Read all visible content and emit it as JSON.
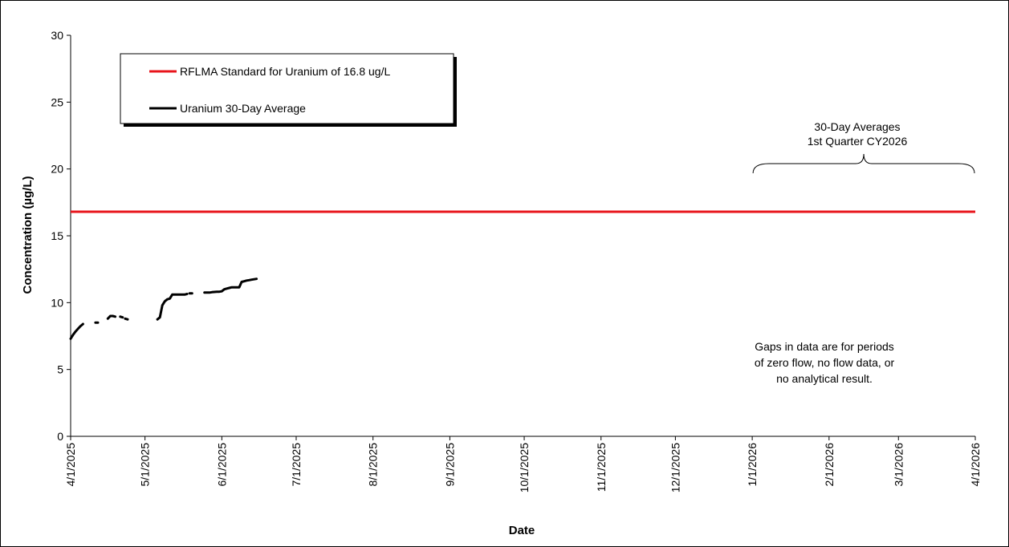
{
  "chart_data": {
    "type": "line",
    "xlabel": "Date",
    "ylabel": "Concentration (µg/L)",
    "ylim": [
      0,
      30
    ],
    "y_ticks": [
      "0",
      "5",
      "10",
      "15",
      "20",
      "25",
      "30"
    ],
    "x_ticks": [
      "4/1/2025",
      "5/1/2025",
      "6/1/2025",
      "7/1/2025",
      "8/1/2025",
      "9/1/2025",
      "10/1/2025",
      "11/1/2025",
      "12/1/2025",
      "1/1/2026",
      "2/1/2026",
      "3/1/2026",
      "4/1/2026"
    ],
    "xlim": [
      "4/1/2025",
      "4/1/2026"
    ],
    "grid": false,
    "legend_placement": "top-left",
    "series": [
      {
        "name": "RFLMA Standard for Uranium of 16.8 ug/L",
        "color": "#e8141b",
        "constant": 16.8
      },
      {
        "name": "Uranium 30-Day Average",
        "color": "#000000",
        "segments": [
          {
            "x": [
              "4/1/2025",
              "4/2/2025",
              "4/3/2025",
              "4/4/2025",
              "4/5/2025",
              "4/6/2025"
            ],
            "y": [
              7.3,
              7.6,
              7.85,
              8.05,
              8.25,
              8.4
            ]
          },
          {
            "x": [
              "4/11/2025",
              "4/12/2025"
            ],
            "y": [
              8.5,
              8.5
            ]
          },
          {
            "x": [
              "4/16/2025",
              "4/17/2025",
              "4/18/2025",
              "4/19/2025"
            ],
            "y": [
              8.8,
              9.0,
              9.0,
              8.95
            ]
          },
          {
            "x": [
              "4/21/2025",
              "4/22/2025"
            ],
            "y": [
              8.95,
              8.9
            ]
          },
          {
            "x": [
              "4/23/2025",
              "4/24/2025"
            ],
            "y": [
              8.8,
              8.75
            ]
          },
          {
            "x": [
              "5/6/2025",
              "5/7/2025",
              "5/8/2025",
              "5/9/2025",
              "5/10/2025",
              "5/11/2025",
              "5/12/2025",
              "5/13/2025",
              "5/14/2025",
              "5/15/2025",
              "5/16/2025",
              "5/17/2025",
              "5/18/2025"
            ],
            "y": [
              8.75,
              8.9,
              9.8,
              10.1,
              10.25,
              10.3,
              10.6,
              10.6,
              10.6,
              10.6,
              10.6,
              10.6,
              10.65
            ]
          },
          {
            "x": [
              "5/19/2025",
              "5/20/2025"
            ],
            "y": [
              10.7,
              10.7
            ]
          },
          {
            "x": [
              "5/25/2025",
              "5/26/2025",
              "5/27/2025",
              "5/28/2025",
              "5/29/2025",
              "5/30/2025",
              "5/31/2025",
              "6/1/2025",
              "6/2/2025",
              "6/3/2025",
              "6/4/2025",
              "6/5/2025",
              "6/6/2025",
              "6/7/2025",
              "6/8/2025",
              "6/9/2025",
              "6/10/2025",
              "6/11/2025",
              "6/12/2025",
              "6/13/2025",
              "6/14/2025",
              "6/15/2025"
            ],
            "y": [
              10.75,
              10.75,
              10.75,
              10.78,
              10.8,
              10.82,
              10.82,
              10.85,
              11.0,
              11.05,
              11.1,
              11.15,
              11.15,
              11.15,
              11.15,
              11.55,
              11.6,
              11.65,
              11.68,
              11.72,
              11.75,
              11.78
            ]
          }
        ]
      }
    ],
    "annotations": {
      "bracket_title_line1": "30-Day Averages",
      "bracket_title_line2": "1st Quarter CY2026",
      "bracket_range": [
        "1/1/2026",
        "4/1/2026"
      ],
      "note_line1": "Gaps in data are for periods",
      "note_line2": "of zero flow, no flow data, or",
      "note_line3": "no analytical result."
    }
  }
}
